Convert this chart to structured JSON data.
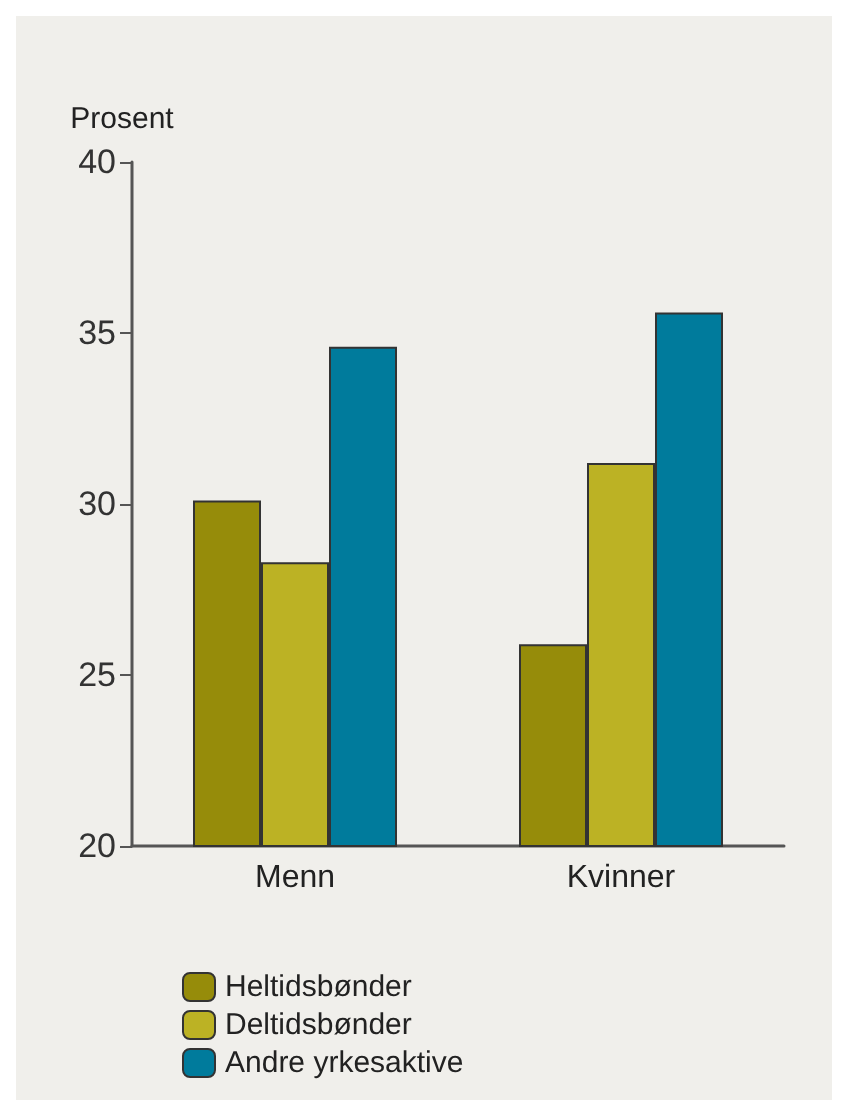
{
  "chart_data": {
    "type": "bar",
    "ylabel": "Prosent",
    "categories": [
      "Menn",
      "Kvinner"
    ],
    "series": [
      {
        "name": "Heltidsbønder",
        "color": "#968c0a",
        "values": [
          30.1,
          25.9
        ]
      },
      {
        "name": "Deltidsbønder",
        "color": "#bcb224",
        "values": [
          28.3,
          31.2
        ]
      },
      {
        "name": "Andre yrkesaktive",
        "color": "#007b9c",
        "values": [
          34.6,
          35.6
        ]
      }
    ],
    "ylim": [
      20,
      40
    ],
    "yticks": [
      20,
      25,
      30,
      35,
      40
    ],
    "grid": false,
    "legend": "bottom"
  }
}
